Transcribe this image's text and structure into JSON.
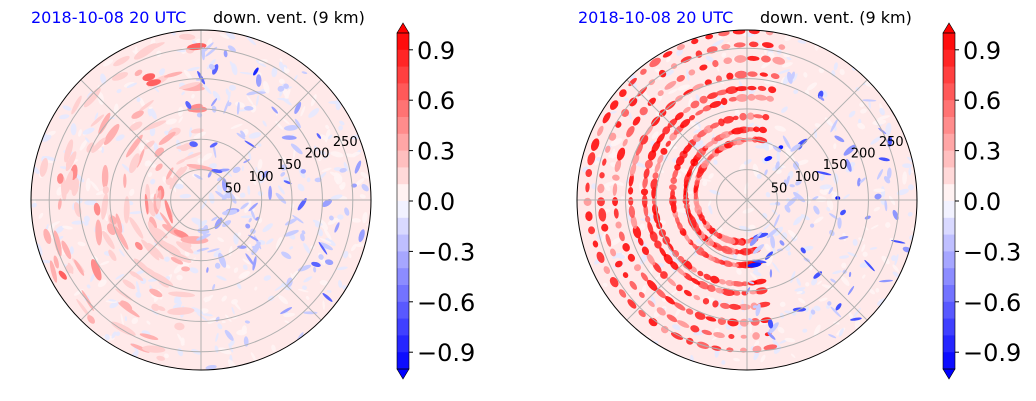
{
  "chart_data": [
    {
      "type": "heatmap",
      "projection": "polar",
      "title_left": "2018-10-08 20 UTC",
      "title_right": "down. vent. (9 km)",
      "radial_ticks": [
        50,
        100,
        150,
        200,
        250
      ],
      "rmax": 280,
      "angular_grid_deg": 45,
      "colorbar": {
        "ticks": [
          0.9,
          0.6,
          0.3,
          0.0,
          -0.3,
          -0.6,
          -0.9
        ],
        "tick_labels": [
          "0.9",
          "0.6",
          "0.3",
          "0.0",
          "−0.3",
          "−0.6",
          "−0.9"
        ],
        "vmin": -1.0,
        "vmax": 1.0,
        "extend": "both",
        "levels": 20,
        "cmap": "bwr"
      },
      "colors": {
        "positive": "#ff0000",
        "negative": "#0000ff",
        "neutral": "#ffffff"
      },
      "features": {
        "dominant_sign": "weakly positive background with scattered negative streaks on eastern side",
        "positive_regions": [
          "west",
          "southwest"
        ],
        "negative_regions": [
          "east",
          "northeast"
        ]
      }
    },
    {
      "type": "heatmap",
      "projection": "polar",
      "title_left": "2018-10-08 20 UTC",
      "title_right": "down. vent. (9 km)",
      "radial_ticks": [
        50,
        100,
        150,
        200,
        250
      ],
      "rmax": 280,
      "angular_grid_deg": 45,
      "colorbar": {
        "ticks": [
          0.9,
          0.6,
          0.3,
          0.0,
          -0.3,
          -0.6,
          -0.9
        ],
        "tick_labels": [
          "0.9",
          "0.6",
          "0.3",
          "0.0",
          "−0.3",
          "−0.6",
          "−0.9"
        ],
        "vmin": -1.0,
        "vmax": 1.0,
        "extend": "both",
        "levels": 20,
        "cmap": "bwr"
      },
      "colors": {
        "positive": "#ff0000",
        "negative": "#0000ff",
        "neutral": "#ffffff"
      },
      "features": {
        "dominant_sign": "strong positive spiral bands on western half, negative streaks on eastern half",
        "positive_regions": [
          "west",
          "northwest",
          "inner core"
        ],
        "negative_regions": [
          "east",
          "southeast"
        ]
      }
    }
  ]
}
